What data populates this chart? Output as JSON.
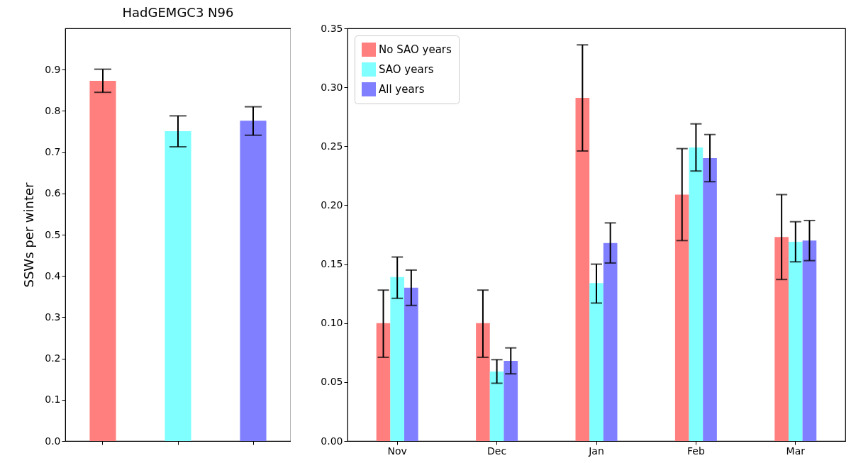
{
  "chart_data": [
    {
      "type": "bar",
      "title": "HadGEMGC3 N96",
      "ylabel": "SSWs per winter",
      "categories": [
        null,
        null,
        null
      ],
      "values": [
        0.873,
        0.751,
        0.776
      ],
      "colors": [
        "#ff7f7f",
        "#7fffff",
        "#7f7fff"
      ],
      "errors": [
        [
          0.845,
          0.901
        ],
        [
          0.713,
          0.788
        ],
        [
          0.741,
          0.81
        ]
      ],
      "ylim": [
        0,
        1.0
      ],
      "yticks": [
        {
          "value": 0,
          "label": "0.0"
        },
        0.1,
        0.2,
        0.3,
        0.4,
        0.5,
        0.6,
        0.7,
        0.8,
        0.9
      ],
      "tick_labels": "y",
      "grid": false
    },
    {
      "type": "bar",
      "categories": [
        "Nov",
        "Dec",
        "Jan",
        "Feb",
        "Mar"
      ],
      "series": [
        {
          "name": "No SAO years",
          "color": "#ff7f7f",
          "values": [
            0.1,
            0.1,
            0.291,
            0.209,
            0.173
          ],
          "errors": [
            [
              0.071,
              0.128
            ],
            [
              0.071,
              0.128
            ],
            [
              0.246,
              0.336
            ],
            [
              0.17,
              0.248
            ],
            [
              0.137,
              0.209
            ]
          ]
        },
        {
          "name": "SAO years",
          "color": "#7fffff",
          "values": [
            0.139,
            0.059,
            0.134,
            0.249,
            0.169
          ],
          "errors": [
            [
              0.121,
              0.156
            ],
            [
              0.049,
              0.069
            ],
            [
              0.117,
              0.15
            ],
            [
              0.229,
              0.269
            ],
            [
              0.152,
              0.186
            ]
          ]
        },
        {
          "name": "All years",
          "color": "#7f7fff",
          "values": [
            0.13,
            0.068,
            0.168,
            0.24,
            0.17
          ],
          "errors": [
            [
              0.115,
              0.145
            ],
            [
              0.057,
              0.079
            ],
            [
              0.151,
              0.185
            ],
            [
              0.22,
              0.26
            ],
            [
              0.153,
              0.187
            ]
          ]
        }
      ],
      "ylim": [
        0,
        0.35
      ],
      "yticks": [
        {
          "value": 0,
          "label": "0.00"
        },
        0.05,
        {
          "value": 0.1,
          "label": "0.10"
        },
        0.15,
        {
          "value": 0.2,
          "label": "0.20"
        },
        0.25,
        {
          "value": 0.3,
          "label": "0.30"
        },
        0.35
      ],
      "legend": "top left",
      "grid": false
    }
  ]
}
